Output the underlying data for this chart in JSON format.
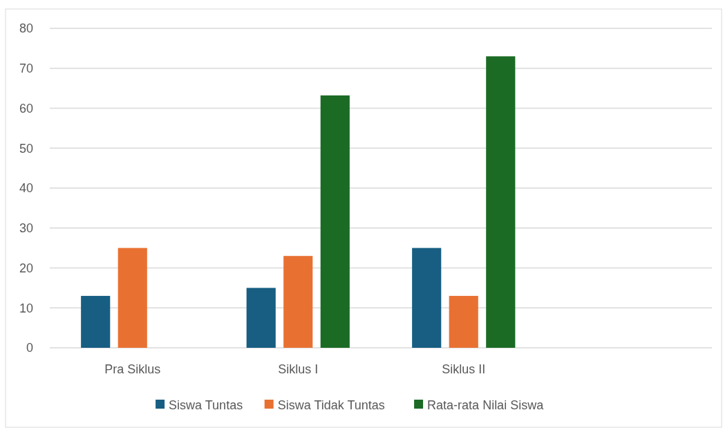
{
  "chart_data": {
    "type": "bar",
    "categories": [
      "Pra Siklus",
      "Siklus I",
      "Siklus II",
      null
    ],
    "series": [
      {
        "name": "Siswa Tuntas",
        "color": "#175e82",
        "values": [
          13,
          15,
          25,
          null
        ]
      },
      {
        "name": "Siswa Tidak Tuntas",
        "color": "#e87132",
        "values": [
          25,
          23,
          13,
          null
        ]
      },
      {
        "name": "Rata-rata Nilai Siswa",
        "color": "#1b6b25",
        "values": [
          null,
          63.2,
          73,
          null
        ]
      }
    ],
    "ylim": [
      0,
      80
    ],
    "yticks": [
      0,
      10,
      20,
      30,
      40,
      50,
      60,
      70,
      80
    ],
    "grid": "y",
    "legend": "bottom"
  }
}
